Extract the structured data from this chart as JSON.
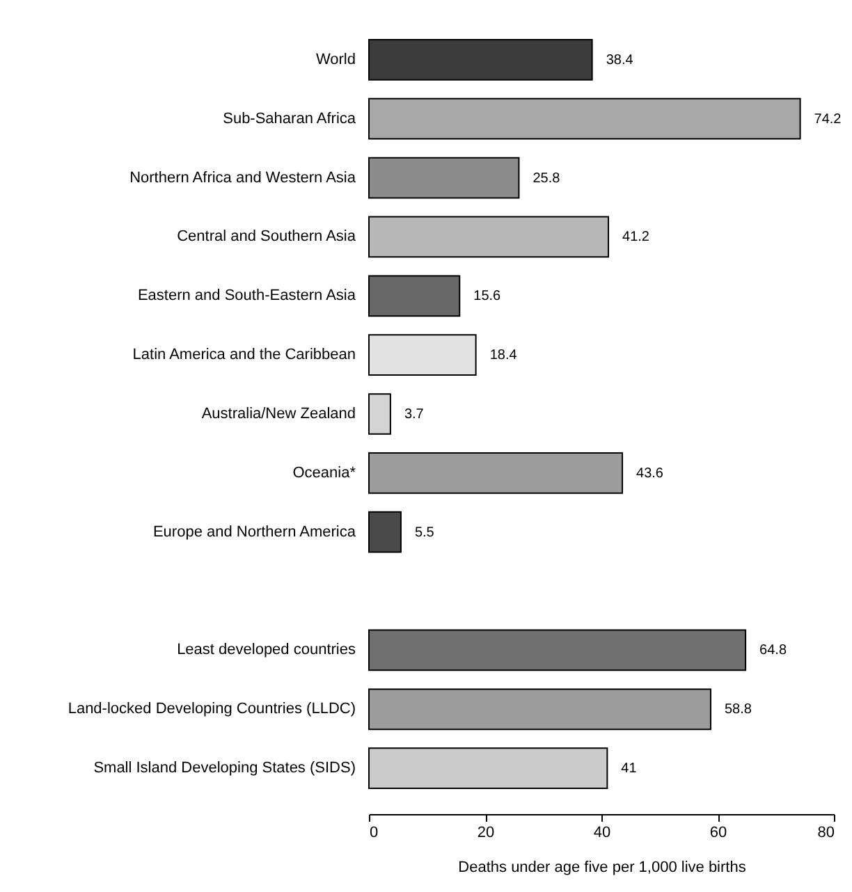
{
  "chart_data": {
    "type": "bar",
    "orientation": "horizontal",
    "xlabel": "Deaths under age five per 1,000 live births",
    "categories": [
      "World",
      "Sub-Saharan Africa",
      "Northern Africa and Western Asia",
      "Central and Southern Asia",
      "Eastern and South-Eastern Asia",
      "Latin America and the Caribbean",
      "Australia/New Zealand",
      "Oceania*",
      "Europe and Northern America",
      null,
      "Least developed countries",
      "Land-locked Developing Countries (LLDC)",
      "Small Island Developing States (SIDS)"
    ],
    "values": [
      38.4,
      74.2,
      25.8,
      41.2,
      15.6,
      18.4,
      3.7,
      43.6,
      5.5,
      null,
      64.8,
      58.8,
      41
    ],
    "colors": [
      "#3c3c3c",
      "#a8a8a8",
      "#8c8c8c",
      "#b8b8b8",
      "#686868",
      "#e2e2e2",
      "#d4d4d4",
      "#9c9c9c",
      "#4a4a4a",
      "#ffffff",
      "#707070",
      "#9c9c9c",
      "#cacaca"
    ],
    "xlim": [
      0,
      80
    ],
    "xticks": [
      0,
      20,
      40,
      60,
      80
    ],
    "data_labels": true
  }
}
